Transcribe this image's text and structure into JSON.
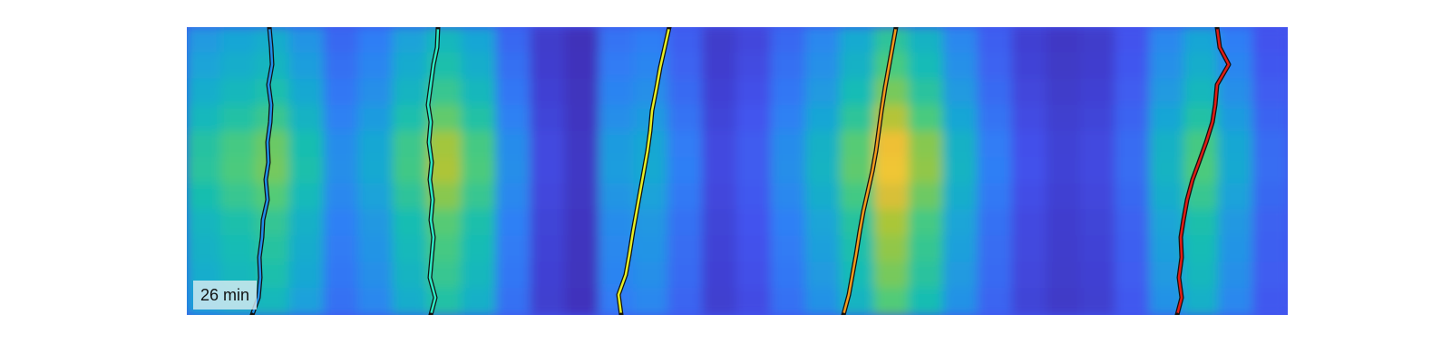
{
  "chart_data": {
    "type": "heatmap",
    "title": "",
    "xlabel": "",
    "ylabel": "",
    "axes_visible": false,
    "colormap": "parula",
    "colormap_stops": [
      "#3e26a8",
      "#4353ee",
      "#2f7ff5",
      "#1aa4d8",
      "#13bdb4",
      "#4dcb7b",
      "#a7c639",
      "#eebe36",
      "#f9e72a"
    ],
    "annotation": "26 min",
    "columns": [
      0.55,
      0.62,
      0.68,
      0.52,
      0.3,
      0.4,
      0.6,
      0.76,
      0.62,
      0.3,
      0.1,
      0.05,
      0.35,
      0.4,
      0.25,
      0.1,
      0.15,
      0.3,
      0.45,
      0.65,
      0.9,
      0.72,
      0.45,
      0.25,
      0.12,
      0.08,
      0.1,
      0.2,
      0.45,
      0.62,
      0.4,
      0.2
    ],
    "rows": [
      0.62,
      0.68,
      0.76,
      0.86,
      0.98,
      1.0,
      0.93,
      0.84,
      0.8,
      0.76,
      0.7
    ],
    "series": [
      {
        "name": "",
        "color": "#1f8fe6",
        "x": [
          0.278,
          0.285,
          0.287,
          0.286,
          0.289,
          0.29,
          0.295,
          0.293,
          0.296,
          0.295,
          0.298,
          0.299,
          0.296,
          0.3,
          0.299,
          0.297
        ],
        "y": [
          0.0,
          0.06,
          0.13,
          0.2,
          0.27,
          0.33,
          0.4,
          0.47,
          0.53,
          0.6,
          0.67,
          0.73,
          0.8,
          0.87,
          0.93,
          1.0
        ]
      },
      {
        "name": "",
        "color": "#2ce8c2",
        "x": [
          0.475,
          0.48,
          0.474,
          0.476,
          0.478,
          0.475,
          0.477,
          0.474,
          0.476,
          0.473,
          0.475,
          0.472,
          0.475,
          0.478,
          0.482,
          0.483
        ],
        "y": [
          0.0,
          0.06,
          0.13,
          0.2,
          0.27,
          0.33,
          0.4,
          0.47,
          0.53,
          0.6,
          0.67,
          0.73,
          0.8,
          0.87,
          0.93,
          1.0
        ]
      },
      {
        "name": "",
        "color": "#e6f025",
        "x": [
          0.685,
          0.682,
          0.69,
          0.694,
          0.698,
          0.702,
          0.706,
          0.71,
          0.714,
          0.717,
          0.719,
          0.724,
          0.728,
          0.733,
          0.738
        ],
        "y": [
          0.0,
          0.07,
          0.14,
          0.21,
          0.29,
          0.36,
          0.43,
          0.5,
          0.57,
          0.64,
          0.71,
          0.79,
          0.86,
          0.93,
          1.0
        ]
      },
      {
        "name": "",
        "color": "#f29a1c",
        "x": [
          0.93,
          0.936,
          0.94,
          0.944,
          0.948,
          0.952,
          0.957,
          0.962,
          0.966,
          0.969,
          0.972,
          0.976,
          0.98,
          0.984,
          0.988
        ],
        "y": [
          0.0,
          0.07,
          0.14,
          0.21,
          0.29,
          0.36,
          0.43,
          0.5,
          0.57,
          0.64,
          0.71,
          0.79,
          0.86,
          0.93,
          1.0
        ]
      },
      {
        "name": "",
        "color": "#e01c14",
        "x": [
          1.298,
          1.303,
          1.3,
          1.303,
          1.302,
          1.305,
          1.309,
          1.315,
          1.322,
          1.33,
          1.337,
          1.34,
          1.342,
          1.355,
          1.345,
          1.342
        ],
        "y": [
          0.0,
          0.06,
          0.13,
          0.2,
          0.27,
          0.33,
          0.4,
          0.47,
          0.53,
          0.6,
          0.67,
          0.73,
          0.8,
          0.87,
          0.93,
          1.0
        ]
      }
    ]
  }
}
